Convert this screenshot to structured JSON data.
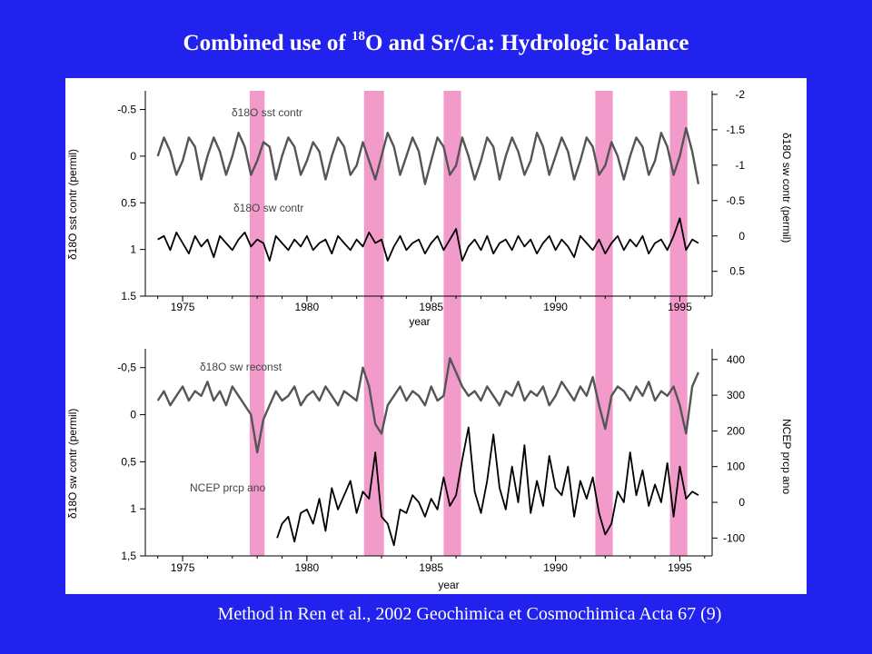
{
  "slide": {
    "title_prefix": "Combined use of ",
    "title_sup": "18",
    "title_suffix": "O and Sr/Ca: Hydrologic balance",
    "citation": "Method in Ren et al., 2002 Geochimica et Cosmochimica Acta 67 (9)"
  },
  "colors": {
    "background": "#2222ee",
    "highlight_band": "#f29bcb",
    "gray_series": "#555555",
    "black_series": "#000000"
  },
  "chart_data": [
    {
      "type": "line",
      "panel": "top",
      "xlabel": "year",
      "xlim": [
        1973.5,
        1996.3
      ],
      "x_ticks": [
        1975,
        1980,
        1985,
        1990,
        1995
      ],
      "ylabel_left": "δ18O sst contr (permil)",
      "ylabel_right": "δ18O sw contr (permil)",
      "ylim_left": [
        1.5,
        -0.7
      ],
      "ylim_right": [
        0.85,
        -2.05
      ],
      "y_ticks_left": [
        "-0.5",
        "0",
        "0.5",
        "1",
        "1.5"
      ],
      "y_tick_values_left": [
        -0.5,
        0,
        0.5,
        1,
        1.5
      ],
      "y_ticks_right": [
        "-2",
        "-1.5",
        "-1",
        "-0.5",
        "0",
        "0.5"
      ],
      "y_tick_values_right": [
        -2,
        -1.5,
        -1,
        -0.5,
        0,
        0.5
      ],
      "highlight_bands": [
        [
          1977.7,
          1978.3
        ],
        [
          1982.3,
          1983.1
        ],
        [
          1985.5,
          1986.2
        ],
        [
          1991.6,
          1992.3
        ],
        [
          1994.6,
          1995.3
        ]
      ],
      "series": [
        {
          "name": "δ18O sst contr",
          "axis": "left",
          "color": "gray",
          "x": [
            1974.0,
            1974.25,
            1974.5,
            1974.75,
            1975.0,
            1975.25,
            1975.5,
            1975.75,
            1976.0,
            1976.25,
            1976.5,
            1976.75,
            1977.0,
            1977.25,
            1977.5,
            1977.75,
            1978.0,
            1978.25,
            1978.5,
            1978.75,
            1979.0,
            1979.25,
            1979.5,
            1979.75,
            1980.0,
            1980.25,
            1980.5,
            1980.75,
            1981.0,
            1981.25,
            1981.5,
            1981.75,
            1982.0,
            1982.25,
            1982.5,
            1982.75,
            1983.0,
            1983.25,
            1983.5,
            1983.75,
            1984.0,
            1984.25,
            1984.5,
            1984.75,
            1985.0,
            1985.25,
            1985.5,
            1985.75,
            1986.0,
            1986.25,
            1986.5,
            1986.75,
            1987.0,
            1987.25,
            1987.5,
            1987.75,
            1988.0,
            1988.25,
            1988.5,
            1988.75,
            1989.0,
            1989.25,
            1989.5,
            1989.75,
            1990.0,
            1990.25,
            1990.5,
            1990.75,
            1991.0,
            1991.25,
            1991.5,
            1991.75,
            1992.0,
            1992.25,
            1992.5,
            1992.75,
            1993.0,
            1993.25,
            1993.5,
            1993.75,
            1994.0,
            1994.25,
            1994.5,
            1994.75,
            1995.0,
            1995.25,
            1995.5,
            1995.75
          ],
          "values": [
            0.0,
            -0.2,
            -0.05,
            0.2,
            0.05,
            -0.2,
            -0.1,
            0.25,
            0.0,
            -0.2,
            -0.05,
            0.2,
            0.0,
            -0.25,
            -0.1,
            0.2,
            0.05,
            -0.15,
            -0.1,
            0.25,
            0.0,
            -0.2,
            -0.1,
            0.2,
            0.05,
            -0.15,
            -0.05,
            0.25,
            0.0,
            -0.2,
            -0.1,
            0.2,
            0.1,
            -0.15,
            0.05,
            0.25,
            0.0,
            -0.25,
            -0.1,
            0.2,
            0.0,
            -0.2,
            -0.05,
            0.3,
            0.05,
            -0.2,
            -0.1,
            0.2,
            0.1,
            -0.2,
            0.0,
            0.25,
            0.05,
            -0.2,
            -0.1,
            0.25,
            0.0,
            -0.2,
            -0.05,
            0.2,
            0.05,
            -0.25,
            -0.1,
            0.2,
            0.0,
            -0.2,
            -0.05,
            0.25,
            0.05,
            -0.2,
            -0.1,
            0.2,
            0.1,
            -0.15,
            0.0,
            0.25,
            0.0,
            -0.2,
            -0.1,
            0.2,
            0.05,
            -0.25,
            -0.1,
            0.2,
            0.0,
            -0.3,
            -0.05,
            0.3
          ]
        },
        {
          "name": "δ18O sw contr",
          "axis": "right",
          "color": "black",
          "x": [
            1974.0,
            1974.25,
            1974.5,
            1974.75,
            1975.0,
            1975.25,
            1975.5,
            1975.75,
            1976.0,
            1976.25,
            1976.5,
            1976.75,
            1977.0,
            1977.25,
            1977.5,
            1977.75,
            1978.0,
            1978.25,
            1978.5,
            1978.75,
            1979.0,
            1979.25,
            1979.5,
            1979.75,
            1980.0,
            1980.25,
            1980.5,
            1980.75,
            1981.0,
            1981.25,
            1981.5,
            1981.75,
            1982.0,
            1982.25,
            1982.5,
            1982.75,
            1983.0,
            1983.25,
            1983.5,
            1983.75,
            1984.0,
            1984.25,
            1984.5,
            1984.75,
            1985.0,
            1985.25,
            1985.5,
            1985.75,
            1986.0,
            1986.25,
            1986.5,
            1986.75,
            1987.0,
            1987.25,
            1987.5,
            1987.75,
            1988.0,
            1988.25,
            1988.5,
            1988.75,
            1989.0,
            1989.25,
            1989.5,
            1989.75,
            1990.0,
            1990.25,
            1990.5,
            1990.75,
            1991.0,
            1991.25,
            1991.5,
            1991.75,
            1992.0,
            1992.25,
            1992.5,
            1992.75,
            1993.0,
            1993.25,
            1993.5,
            1993.75,
            1994.0,
            1994.25,
            1994.5,
            1994.75,
            1995.0,
            1995.25,
            1995.5,
            1995.75
          ],
          "values": [
            0.05,
            0.0,
            0.2,
            -0.05,
            0.1,
            0.25,
            0.0,
            0.15,
            0.05,
            0.3,
            0.0,
            0.1,
            0.2,
            0.05,
            -0.05,
            0.15,
            0.05,
            0.1,
            0.35,
            0.0,
            0.1,
            0.2,
            0.05,
            0.15,
            0.0,
            0.2,
            0.1,
            0.05,
            0.25,
            0.0,
            0.1,
            0.2,
            0.05,
            0.15,
            -0.05,
            0.1,
            0.05,
            0.35,
            0.15,
            0.0,
            0.2,
            0.1,
            0.05,
            0.25,
            0.1,
            0.0,
            0.2,
            0.05,
            -0.1,
            0.35,
            0.15,
            0.05,
            0.2,
            0.0,
            0.25,
            0.1,
            0.05,
            0.2,
            0.0,
            0.15,
            0.05,
            0.25,
            0.1,
            0.0,
            0.2,
            0.05,
            0.15,
            0.3,
            0.0,
            0.1,
            0.2,
            0.05,
            0.25,
            0.1,
            0.0,
            0.2,
            0.05,
            0.15,
            0.0,
            0.25,
            0.1,
            0.05,
            0.2,
            0.0,
            -0.25,
            0.2,
            0.05,
            0.1
          ]
        }
      ]
    },
    {
      "type": "line",
      "panel": "bottom",
      "xlabel": "year",
      "xlim": [
        1973.5,
        1996.3
      ],
      "x_ticks": [
        1975,
        1980,
        1985,
        1990,
        1995
      ],
      "ylabel_left": "δ18O sw contr (permil)",
      "ylabel_right": "NCEP prcp ano",
      "ylim_left": [
        1.5,
        -0.7
      ],
      "ylim_right": [
        -150,
        430
      ],
      "y_ticks_left": [
        "-0,5",
        "0",
        "0,5",
        "1",
        "1,5"
      ],
      "y_tick_values_left": [
        -0.5,
        0,
        0.5,
        1,
        1.5
      ],
      "y_ticks_right": [
        "400",
        "300",
        "200",
        "100",
        "0",
        "-100"
      ],
      "y_tick_values_right": [
        400,
        300,
        200,
        100,
        0,
        -100
      ],
      "highlight_bands": [
        [
          1977.7,
          1978.3
        ],
        [
          1982.3,
          1983.1
        ],
        [
          1985.5,
          1986.2
        ],
        [
          1991.6,
          1992.3
        ],
        [
          1994.6,
          1995.3
        ]
      ],
      "series": [
        {
          "name": "δ18O sw reconst",
          "axis": "left",
          "color": "gray",
          "x": [
            1974.0,
            1974.25,
            1974.5,
            1974.75,
            1975.0,
            1975.25,
            1975.5,
            1975.75,
            1976.0,
            1976.25,
            1976.5,
            1976.75,
            1977.0,
            1977.25,
            1977.5,
            1977.75,
            1978.0,
            1978.25,
            1978.5,
            1978.75,
            1979.0,
            1979.25,
            1979.5,
            1979.75,
            1980.0,
            1980.25,
            1980.5,
            1980.75,
            1981.0,
            1981.25,
            1981.5,
            1981.75,
            1982.0,
            1982.25,
            1982.5,
            1982.75,
            1983.0,
            1983.25,
            1983.5,
            1983.75,
            1984.0,
            1984.25,
            1984.5,
            1984.75,
            1985.0,
            1985.25,
            1985.5,
            1985.75,
            1986.0,
            1986.25,
            1986.5,
            1986.75,
            1987.0,
            1987.25,
            1987.5,
            1987.75,
            1988.0,
            1988.25,
            1988.5,
            1988.75,
            1989.0,
            1989.25,
            1989.5,
            1989.75,
            1990.0,
            1990.25,
            1990.5,
            1990.75,
            1991.0,
            1991.25,
            1991.5,
            1991.75,
            1992.0,
            1992.25,
            1992.5,
            1992.75,
            1993.0,
            1993.25,
            1993.5,
            1993.75,
            1994.0,
            1994.25,
            1994.5,
            1994.75,
            1995.0,
            1995.25,
            1995.5,
            1995.75
          ],
          "values": [
            -0.15,
            -0.25,
            -0.1,
            -0.2,
            -0.3,
            -0.15,
            -0.25,
            -0.2,
            -0.35,
            -0.15,
            -0.25,
            -0.1,
            -0.3,
            -0.2,
            -0.1,
            0.0,
            0.4,
            0.05,
            -0.1,
            -0.25,
            -0.15,
            -0.2,
            -0.3,
            -0.1,
            -0.2,
            -0.25,
            -0.15,
            -0.3,
            -0.2,
            -0.1,
            -0.25,
            -0.2,
            -0.15,
            -0.5,
            -0.3,
            0.1,
            0.2,
            -0.1,
            -0.2,
            -0.3,
            -0.15,
            -0.25,
            -0.2,
            -0.1,
            -0.3,
            -0.15,
            -0.2,
            -0.6,
            -0.45,
            -0.3,
            -0.2,
            -0.25,
            -0.15,
            -0.3,
            -0.2,
            -0.1,
            -0.25,
            -0.2,
            -0.35,
            -0.15,
            -0.25,
            -0.2,
            -0.3,
            -0.1,
            -0.2,
            -0.35,
            -0.25,
            -0.15,
            -0.3,
            -0.2,
            -0.4,
            -0.1,
            0.15,
            -0.2,
            -0.3,
            -0.25,
            -0.15,
            -0.3,
            -0.2,
            -0.35,
            -0.15,
            -0.25,
            -0.2,
            -0.3,
            -0.1,
            0.2,
            -0.3,
            -0.45
          ]
        },
        {
          "name": "NCEP prcp ano",
          "axis": "right",
          "color": "black",
          "x": [
            1978.8,
            1979.0,
            1979.25,
            1979.5,
            1979.75,
            1980.0,
            1980.25,
            1980.5,
            1980.75,
            1981.0,
            1981.25,
            1981.5,
            1981.75,
            1982.0,
            1982.25,
            1982.5,
            1982.75,
            1983.0,
            1983.25,
            1983.5,
            1983.75,
            1984.0,
            1984.25,
            1984.5,
            1984.75,
            1985.0,
            1985.25,
            1985.5,
            1985.75,
            1986.0,
            1986.25,
            1986.5,
            1986.75,
            1987.0,
            1987.25,
            1987.5,
            1987.75,
            1988.0,
            1988.25,
            1988.5,
            1988.75,
            1989.0,
            1989.25,
            1989.5,
            1989.75,
            1990.0,
            1990.25,
            1990.5,
            1990.75,
            1991.0,
            1991.25,
            1991.5,
            1991.75,
            1992.0,
            1992.25,
            1992.5,
            1992.75,
            1993.0,
            1993.25,
            1993.5,
            1993.75,
            1994.0,
            1994.25,
            1994.5,
            1994.75,
            1995.0,
            1995.25,
            1995.5,
            1995.75
          ],
          "values": [
            -100,
            -60,
            -40,
            -110,
            -30,
            -20,
            -60,
            10,
            -80,
            40,
            -20,
            20,
            60,
            -30,
            30,
            10,
            140,
            -40,
            -60,
            -120,
            -20,
            -30,
            20,
            0,
            -40,
            10,
            -20,
            70,
            -10,
            20,
            120,
            210,
            30,
            -30,
            60,
            190,
            40,
            -20,
            100,
            0,
            160,
            -30,
            60,
            -10,
            130,
            40,
            20,
            100,
            -40,
            60,
            10,
            70,
            -30,
            -90,
            -60,
            30,
            0,
            140,
            20,
            90,
            -10,
            50,
            0,
            110,
            -40,
            100,
            10,
            30,
            20
          ]
        }
      ]
    }
  ],
  "panels": {
    "top": {
      "label_sst": "δ18O sst contr",
      "label_sw": "δ18O sw contr",
      "left_axis_title": "δ18O sst contr (permil)",
      "right_axis_title": "δ18O sw contr (permil)",
      "x_title": "year"
    },
    "bottom": {
      "label_reconst": "δ18O sw reconst",
      "label_ncep": "NCEP prcp ano",
      "left_axis_title": "δ18O sw contr (permil)",
      "right_axis_title": "NCEP prcp ano",
      "x_title": "year"
    }
  }
}
